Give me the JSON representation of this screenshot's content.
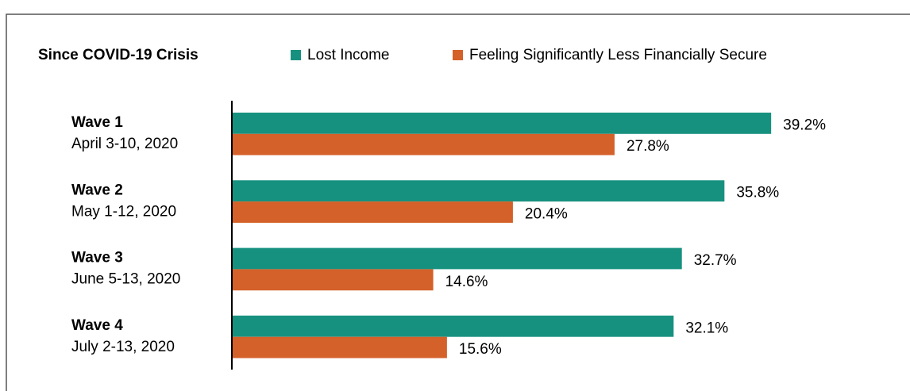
{
  "chart_data": {
    "type": "bar",
    "orientation": "horizontal",
    "legend_title": "Since COVID-19 Crisis",
    "categories": [
      "Wave 1",
      "Wave 2",
      "Wave 3",
      "Wave 4"
    ],
    "category_dates": [
      "April 3-10, 2020",
      "May 1-12, 2020",
      "June 5-13, 2020",
      "July 2-13, 2020"
    ],
    "series": [
      {
        "name": "Lost Income",
        "color": "#17917f",
        "values": [
          39.2,
          35.8,
          32.7,
          32.1
        ],
        "value_labels": [
          "39.2%",
          "35.8%",
          "32.7%",
          "32.1%"
        ]
      },
      {
        "name": "Feeling Significantly Less Financially Secure",
        "color": "#d4602a",
        "values": [
          27.8,
          20.4,
          14.6,
          15.6
        ],
        "value_labels": [
          "27.8%",
          "20.4%",
          "14.6%",
          "15.6%"
        ]
      }
    ]
  }
}
